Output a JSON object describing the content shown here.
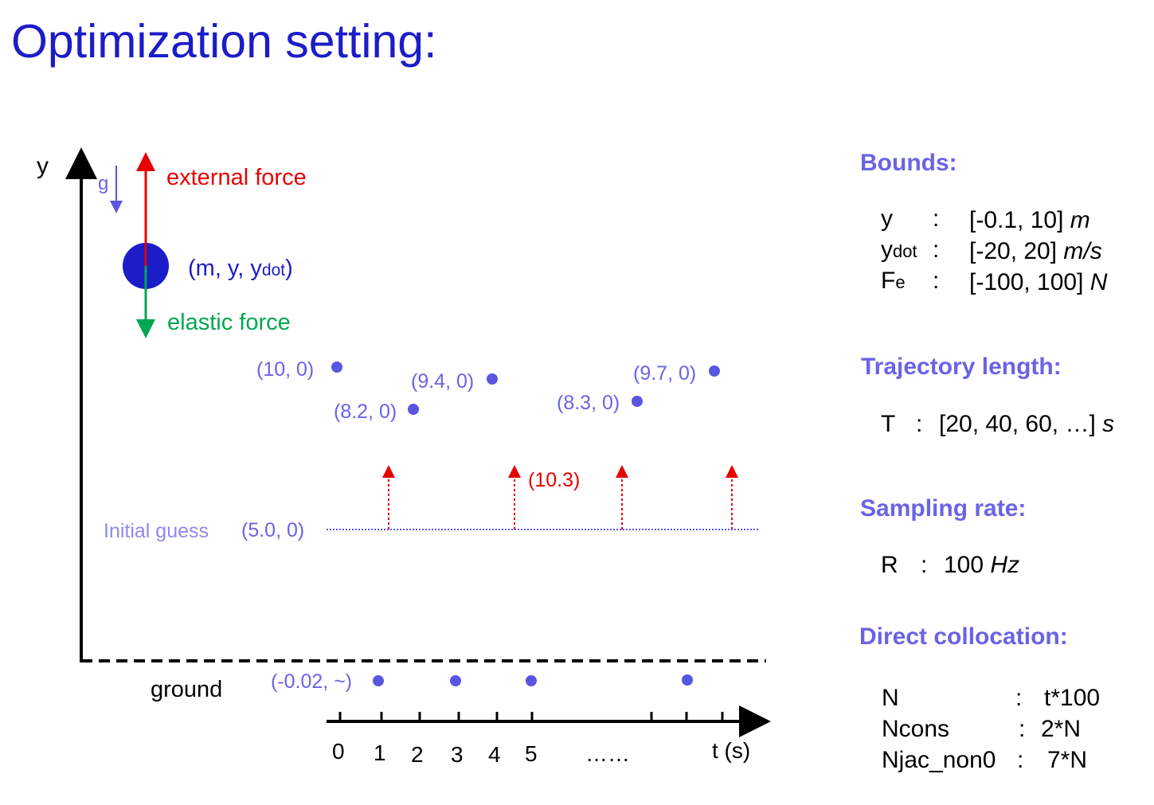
{
  "title": "Optimization setting:",
  "diagram": {
    "y_axis_label": "y",
    "gravity_label": "g",
    "external_force_label": "external force",
    "elastic_force_label": "elastic force",
    "state_label_main": "(m, y, y",
    "state_label_sub": "dot",
    "state_label_end": ")",
    "points_upper": [
      "(10, 0)",
      "(9.4, 0)",
      "(8.2, 0)",
      "(8.3, 0)",
      "(9.7, 0)"
    ],
    "force_value_label": "(10.3)",
    "initial_guess_label": "Initial guess",
    "initial_guess_value": "(5.0, 0)",
    "ground_label": "ground",
    "ground_point_label": "(-0.02, ~)",
    "time_ticks": [
      "0",
      "1",
      "2",
      "3",
      "4",
      "5"
    ],
    "time_ellipsis": "……",
    "time_axis_label": "t (s)",
    "colors": {
      "title": "#1c1cc8",
      "heading": "#6a63e6",
      "point": "#5a55e0",
      "external_force": "#e60000",
      "elastic_force": "#00a651",
      "mass": "#1c1cc8"
    }
  },
  "bounds": {
    "heading": "Bounds:",
    "rows": [
      {
        "name": "y",
        "sub": "",
        "colon": ":",
        "range": "[-0.1, 10]",
        "unit": "m"
      },
      {
        "name": "y",
        "sub": "dot",
        "colon": ":",
        "range": "[-20, 20]",
        "unit": "m/s"
      },
      {
        "name": "F",
        "sub": "e",
        "colon": ":",
        "range": "[-100, 100]",
        "unit": "N"
      }
    ]
  },
  "trajectory": {
    "heading": "Trajectory length:",
    "name": "T",
    "colon": ":",
    "value": "[20, 40, 60, …]",
    "unit": "s"
  },
  "sampling": {
    "heading": "Sampling rate:",
    "name": "R",
    "colon": ":",
    "value": "100",
    "unit": "Hz"
  },
  "collocation": {
    "heading": "Direct collocation:",
    "rows": [
      {
        "name": "N",
        "colon": ":",
        "value": "t*100"
      },
      {
        "name": "Ncons",
        "colon": ":",
        "value": "2*N"
      },
      {
        "name": "Njac_non0",
        "colon": ":",
        "value": "7*N"
      }
    ]
  }
}
